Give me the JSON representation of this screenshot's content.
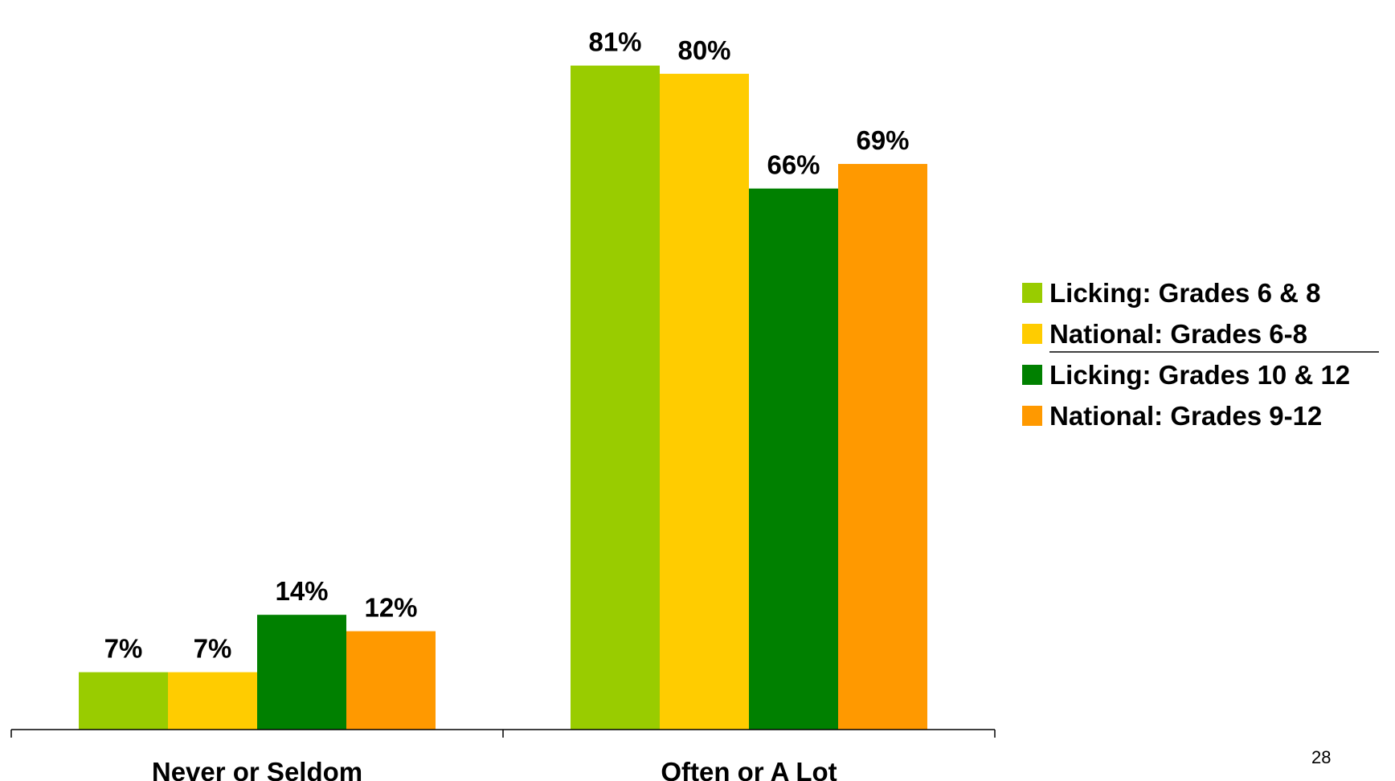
{
  "page_number": "28",
  "chart_data": {
    "type": "bar",
    "categories": [
      "Never or Seldom",
      "Often or A Lot"
    ],
    "series": [
      {
        "name": "Licking: Grades 6 & 8",
        "values": [
          7,
          81
        ],
        "labels": [
          "7%",
          "81%"
        ],
        "color": "#99CC00"
      },
      {
        "name": "National: Grades 6-8",
        "values": [
          7,
          80
        ],
        "labels": [
          "7%",
          "80%"
        ],
        "color": "#FFCC00"
      },
      {
        "name": "Licking: Grades 10 & 12",
        "values": [
          14,
          66
        ],
        "labels": [
          "14%",
          "66%"
        ],
        "color": "#008000"
      },
      {
        "name": "National: Grades 9-12",
        "values": [
          12,
          69
        ],
        "labels": [
          "12%",
          "69%"
        ],
        "color": "#FF9900"
      }
    ],
    "ylim": [
      0,
      89
    ],
    "grid": false,
    "legend_position": "right"
  }
}
